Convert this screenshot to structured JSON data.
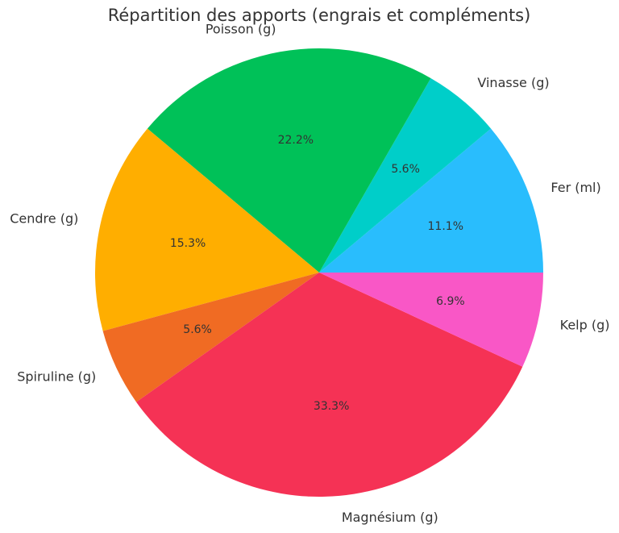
{
  "chart_data": {
    "type": "pie",
    "title": "Répartition des apports (engrais et compléments)",
    "categories": [
      "Fer (ml)",
      "Vinasse (g)",
      "Poisson (g)",
      "Cendre (g)",
      "Spiruline (g)",
      "Magnésium (g)",
      "Kelp (g)"
    ],
    "values": [
      11.1,
      5.6,
      22.2,
      15.3,
      5.6,
      33.3,
      6.9
    ],
    "value_labels": [
      "11.1%",
      "5.6%",
      "22.2%",
      "15.3%",
      "5.6%",
      "33.3%",
      "6.9%"
    ],
    "colors": [
      "#29bdfd",
      "#00cec9",
      "#00c158",
      "#ffae00",
      "#f06b23",
      "#f53255",
      "#f957c6"
    ]
  }
}
